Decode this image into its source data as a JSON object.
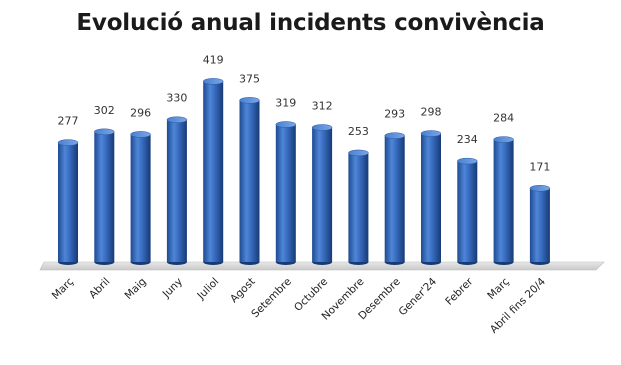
{
  "chart_data": {
    "type": "bar",
    "title": "Evolució anual incidents convivència",
    "xlabel": "",
    "ylabel": "",
    "categories": [
      "Març",
      "Abril",
      "Maig",
      "Juny",
      "Juliol",
      "Agost",
      "Setembre",
      "Octubre",
      "Novembre",
      "Desembre",
      "Gener'24",
      "Febrer",
      "Març",
      "Abril fins 20/4"
    ],
    "values": [
      277,
      302,
      296,
      330,
      419,
      375,
      319,
      312,
      253,
      293,
      298,
      234,
      284,
      171
    ],
    "ylim": [
      0,
      450
    ],
    "grid": false,
    "legend": "none",
    "style": "3d-cylinder",
    "colors": {
      "bar_main": "#2d63b8",
      "bar_light": "#5b8fd9",
      "bar_dark": "#1a3f7d",
      "floor": "#d9d9d9"
    }
  }
}
